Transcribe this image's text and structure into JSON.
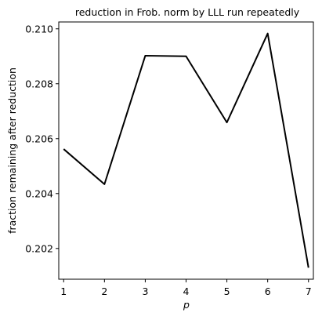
{
  "chart_data": {
    "type": "line",
    "title": "reduction in Frob. norm by LLL run repeatedly",
    "xlabel": "p",
    "ylabel": "fraction remaining after reduction",
    "x": [
      1,
      2,
      3,
      4,
      5,
      6,
      7
    ],
    "series": [
      {
        "values": [
          0.20562,
          0.20434,
          0.20902,
          0.209,
          0.20659,
          0.20983,
          0.2013
        ]
      }
    ],
    "xlim": [
      0.88,
      7.12
    ],
    "ylim": [
      0.20088,
      0.21025
    ],
    "xticks": [
      1,
      2,
      3,
      4,
      5,
      6,
      7
    ],
    "xtick_labels": [
      "1",
      "2",
      "3",
      "4",
      "5",
      "6",
      "7"
    ],
    "yticks": [
      0.202,
      0.204,
      0.206,
      0.208,
      0.21
    ],
    "ytick_labels": [
      "0.202",
      "0.204",
      "0.206",
      "0.208",
      "0.210"
    ],
    "grid": false,
    "line_color": "#000000"
  }
}
